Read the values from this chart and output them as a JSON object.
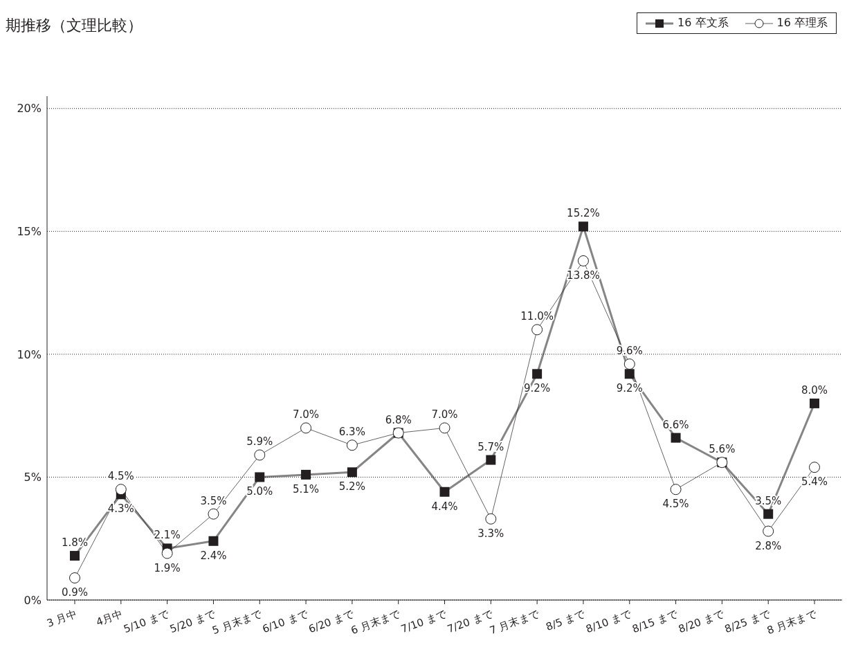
{
  "chart_data": {
    "type": "line",
    "title": "期推移（文理比較）",
    "categories": [
      "3 月中",
      "4月中",
      "5/10 まで",
      "5/20 まで",
      "5 月末まで",
      "6/10 まで",
      "6/20 まで",
      "6 月末まで",
      "7/10 まで",
      "7/20 まで",
      "7 月末まで",
      "8/5 まで",
      "8/10 まで",
      "8/15 まで",
      "8/20 まで",
      "8/25 まで",
      "8 月末まで"
    ],
    "series": [
      {
        "name": "16 卒文系",
        "color": "#231f20",
        "marker": "square",
        "values": [
          1.8,
          4.3,
          2.1,
          2.4,
          5.0,
          5.1,
          5.2,
          6.8,
          4.4,
          5.7,
          9.2,
          15.2,
          9.2,
          6.6,
          5.6,
          3.5,
          8.0
        ],
        "value_labels": [
          "1.8%",
          "4.3%",
          "2.1%",
          "2.4%",
          "5.0%",
          "5.1%",
          "5.2%",
          "6.8%",
          "4.4%",
          "5.7%",
          "9.2%",
          "15.2%",
          "9.2%",
          "6.6%",
          null,
          "3.5%",
          "8.0%"
        ]
      },
      {
        "name": "16 卒理系",
        "color": "#231f20",
        "marker": "circle",
        "values": [
          0.9,
          4.5,
          1.9,
          3.5,
          5.9,
          7.0,
          6.3,
          6.8,
          7.0,
          3.3,
          11.0,
          13.8,
          9.6,
          4.5,
          5.6,
          2.8,
          5.4
        ],
        "value_labels": [
          "0.9%",
          "4.5%",
          "1.9%",
          "3.5%",
          "5.9%",
          "7.0%",
          "6.3%",
          null,
          "7.0%",
          "3.3%",
          "11.0%",
          "13.8%",
          "9.6%",
          "4.5%",
          "5.6%",
          "2.8%",
          "5.4%"
        ]
      }
    ],
    "ylim": [
      0,
      20.5
    ],
    "yticks": [
      {
        "value": 0,
        "label": "0%"
      },
      {
        "value": 5,
        "label": "5%"
      },
      {
        "value": 10,
        "label": "10%"
      },
      {
        "value": 15,
        "label": "15%"
      },
      {
        "value": 20,
        "label": "20%"
      }
    ],
    "grid": "y",
    "legend": "top right"
  }
}
